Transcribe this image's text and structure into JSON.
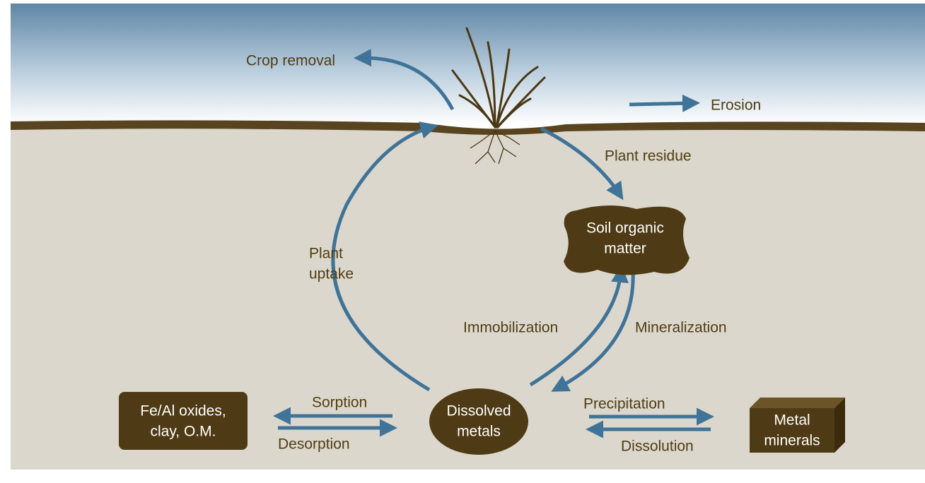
{
  "labels": {
    "crop_removal": "Crop removal",
    "erosion": "Erosion",
    "plant_residue": "Plant residue",
    "plant_uptake": [
      "Plant",
      "uptake"
    ],
    "immobilization": "Immobilization",
    "mineralization": "Mineralization",
    "sorption": "Sorption",
    "desorption": "Desorption",
    "precipitation": "Precipitation",
    "dissolution": "Dissolution"
  },
  "nodes": {
    "soil_organic_matter": [
      "Soil organic",
      "matter"
    ],
    "fe_al_oxides": [
      "Fe/Al oxides,",
      "clay, O.M."
    ],
    "dissolved_metals": [
      "Dissolved",
      "metals"
    ],
    "metal_minerals": [
      "Metal",
      "minerals"
    ]
  }
}
